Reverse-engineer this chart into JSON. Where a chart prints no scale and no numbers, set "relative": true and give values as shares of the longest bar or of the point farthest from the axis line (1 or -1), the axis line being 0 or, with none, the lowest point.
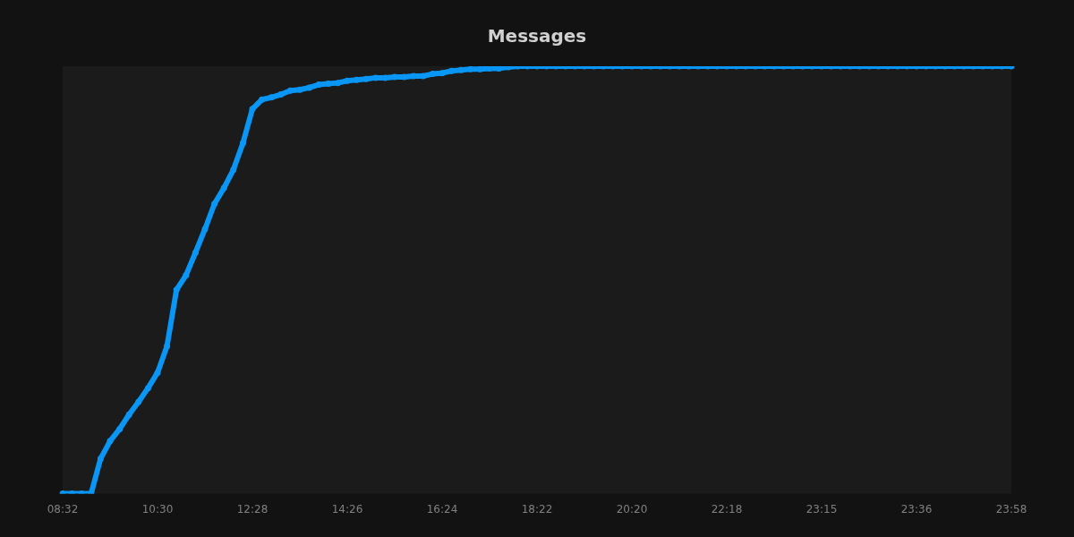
{
  "chart_data": {
    "type": "line",
    "title": "Messages",
    "relative": true,
    "marker": "circle",
    "line_style": "solid",
    "categories": [
      "08:32",
      null,
      null,
      null,
      null,
      null,
      null,
      null,
      null,
      null,
      "10:30",
      null,
      null,
      null,
      null,
      null,
      null,
      null,
      null,
      null,
      "12:28",
      null,
      null,
      null,
      null,
      null,
      null,
      null,
      null,
      null,
      "14:26",
      null,
      null,
      null,
      null,
      null,
      null,
      null,
      null,
      null,
      "16:24",
      null,
      null,
      null,
      null,
      null,
      null,
      null,
      null,
      null,
      "18:22",
      null,
      null,
      null,
      null,
      null,
      null,
      null,
      null,
      null,
      "20:20",
      null,
      null,
      null,
      null,
      null,
      null,
      null,
      null,
      null,
      "22:18",
      null,
      null,
      null,
      null,
      null,
      null,
      null,
      null,
      null,
      "23:15",
      null,
      null,
      null,
      null,
      null,
      null,
      null,
      null,
      null,
      "23:36",
      null,
      null,
      null,
      null,
      null,
      null,
      null,
      null,
      null,
      "23:58"
    ],
    "series": [
      {
        "color": "#0996f5",
        "values": [
          0,
          0,
          0,
          0,
          0.082,
          0.123,
          0.151,
          0.185,
          0.215,
          0.247,
          0.283,
          0.345,
          0.477,
          0.511,
          0.564,
          0.619,
          0.678,
          0.715,
          0.758,
          0.82,
          0.9,
          0.922,
          0.927,
          0.934,
          0.943,
          0.945,
          0.95,
          0.957,
          0.959,
          0.961,
          0.966,
          0.968,
          0.97,
          0.973,
          0.973,
          0.975,
          0.975,
          0.977,
          0.977,
          0.982,
          0.984,
          0.989,
          0.991,
          0.993,
          0.993,
          0.995,
          0.995,
          0.998,
          1,
          1,
          1,
          1,
          1,
          1,
          1,
          1,
          1,
          1,
          1,
          1,
          1,
          1,
          1,
          1,
          1,
          1,
          1,
          1,
          1,
          1,
          1,
          1,
          1,
          1,
          1,
          1,
          1,
          1,
          1,
          1,
          1,
          1,
          1,
          1,
          1,
          1,
          1,
          1,
          1,
          1,
          1,
          1,
          1,
          1,
          1,
          1,
          1,
          1,
          1,
          1,
          1
        ]
      }
    ]
  }
}
